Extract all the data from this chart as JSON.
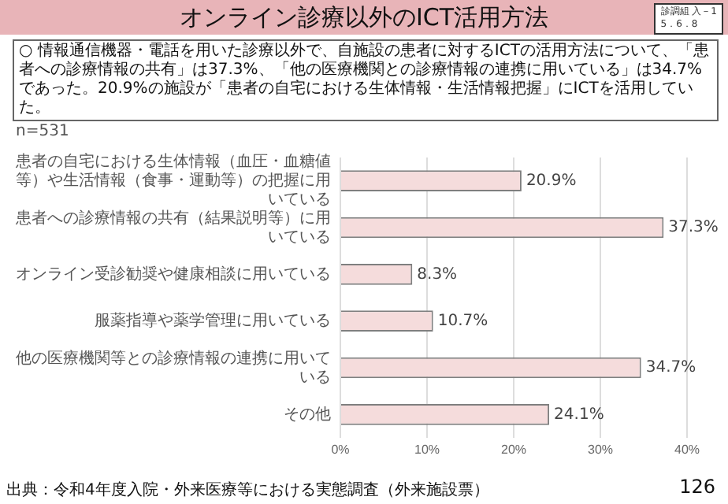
{
  "chart_data": {
    "type": "bar",
    "orientation": "horizontal",
    "title": "オンライン診療以外のICT活用方法",
    "subtitle": "○ 情報通信機器・電話を用いた診療以外で、自施設の患者に対するICTの活用方法について、「患者への診療情報の共有」は37.3%、「他の医療機関との診療情報の連携に用いている」は34.7%であった。20.9%の施設が「患者の自宅における生体情報・生活情報把握」にICTを活用していた。",
    "categories": [
      "患者の自宅における生体情報（血圧・血糖値等）や生活情報（食事・運動等）の把握に用いている",
      "患者への診療情報の共有（結果説明等）に用いている",
      "オンライン受診勧奨や健康相談に用いている",
      "服薬指導や薬学管理に用いている",
      "他の医療機関等との診療情報の連携に用いている",
      "その他"
    ],
    "values": [
      20.9,
      37.3,
      8.3,
      10.7,
      34.7,
      24.1
    ],
    "value_labels": [
      "20.9%",
      "37.3%",
      "8.3%",
      "10.7%",
      "34.7%",
      "24.1%"
    ],
    "color": "#f5dcdc",
    "xlim": [
      0,
      40
    ],
    "xticks": [
      {
        "value": 0,
        "label": "0%"
      },
      {
        "value": 10,
        "label": "10%"
      },
      {
        "value": 20,
        "label": "20%"
      },
      {
        "value": 30,
        "label": "30%"
      },
      {
        "value": 40,
        "label": "40%"
      }
    ],
    "grid": "x",
    "legend": false,
    "annotations": [
      "診調組 入－1\n5．6．8",
      "n=531",
      "出典：令和4年度入院・外来医療等における実態調査（外来施設票）",
      "126"
    ]
  }
}
